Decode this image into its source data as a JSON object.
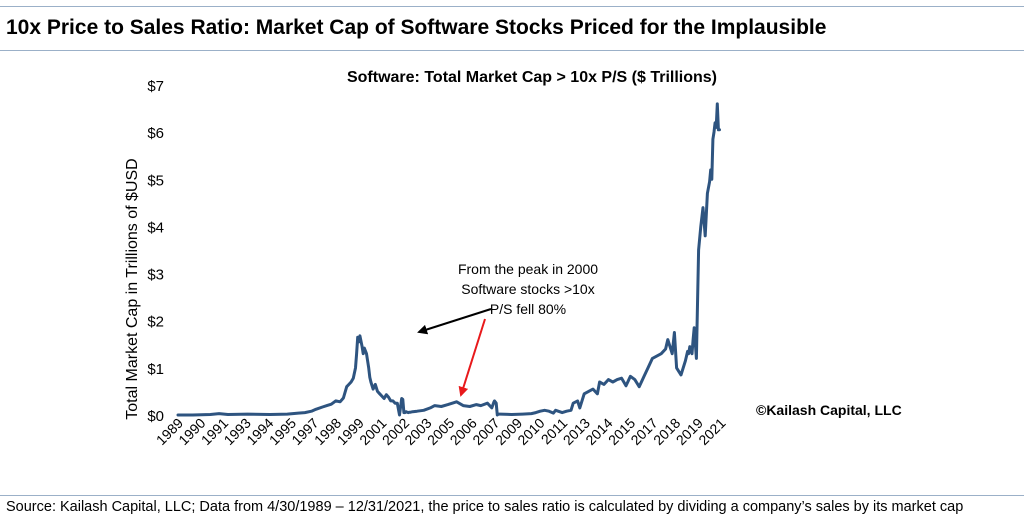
{
  "page": {
    "title": "10x Price to Sales Ratio: Market Cap of Software Stocks Priced for the Implausible",
    "source": "Source: Kailash Capital, LLC; Data from 4/30/1989 – 12/31/2021, the price to sales ratio is calculated by dividing a company’s sales by its market cap"
  },
  "colors": {
    "line": "#2e5480",
    "black_arrow": "#000000",
    "red_arrow": "#e8191b",
    "rule": "#9bb0c8"
  },
  "chart_data": {
    "type": "line",
    "title": "Software: Total Market Cap > 10x P/S ($ Trillions)",
    "ylabel": "Total Market Cap in Trillions of $USD",
    "xlabel": "",
    "ylim": [
      0,
      7
    ],
    "xlim": [
      1989.33,
      2022.25
    ],
    "yticks": [
      0,
      1,
      2,
      3,
      4,
      5,
      6,
      7
    ],
    "ytick_labels": [
      "$0",
      "$1",
      "$2",
      "$3",
      "$4",
      "$5",
      "$6",
      "$7"
    ],
    "xticks": [
      {
        "x": 1989.33,
        "label": "1989"
      },
      {
        "x": 1990.35,
        "label": "1990"
      },
      {
        "x": 1991.38,
        "label": "1991"
      },
      {
        "x": 1992.41,
        "label": "1993"
      },
      {
        "x": 1993.44,
        "label": "1994"
      },
      {
        "x": 1994.47,
        "label": "1995"
      },
      {
        "x": 1995.49,
        "label": "1997"
      },
      {
        "x": 1996.52,
        "label": "1998"
      },
      {
        "x": 1997.55,
        "label": "1999"
      },
      {
        "x": 1998.58,
        "label": "2001"
      },
      {
        "x": 1999.61,
        "label": "2002"
      },
      {
        "x": 2000.63,
        "label": "2003"
      },
      {
        "x": 2001.66,
        "label": "2005"
      },
      {
        "x": 2002.69,
        "label": "2006"
      },
      {
        "x": 2003.72,
        "label": "2007"
      },
      {
        "x": 2004.75,
        "label": "2009"
      },
      {
        "x": 2005.77,
        "label": "2010"
      },
      {
        "x": 2006.8,
        "label": "2011"
      },
      {
        "x": 2007.83,
        "label": "2013"
      },
      {
        "x": 2008.86,
        "label": "2014"
      },
      {
        "x": 2009.89,
        "label": "2015"
      },
      {
        "x": 2010.91,
        "label": "2017"
      },
      {
        "x": 2011.94,
        "label": "2018"
      },
      {
        "x": 2012.97,
        "label": "2019"
      },
      {
        "x": 2014.0,
        "label": "2021"
      }
    ],
    "series": [
      {
        "x": [
          1989.33,
          1990.0,
          1990.8,
          1991.2,
          1991.6,
          1992.5,
          1993.5,
          1994.3,
          1994.8,
          1995.1,
          1995.4,
          1995.6,
          1995.9,
          1996.1,
          1996.3,
          1996.5,
          1996.7,
          1996.85,
          1997.0,
          1997.1,
          1997.2,
          1997.3,
          1997.4,
          1997.45,
          1997.5,
          1997.55,
          1997.6,
          1997.7,
          1997.75,
          1997.8,
          1997.9,
          1998.0,
          1998.05,
          1998.1,
          1998.2,
          1998.3,
          1998.4,
          1998.5,
          1998.6,
          1998.7,
          1998.8,
          1998.9,
          1999.0,
          1999.1,
          1999.2,
          1999.3,
          1999.4,
          1999.5,
          1999.55,
          1999.6,
          1999.65,
          1999.7,
          1999.75,
          1999.8,
          1999.85,
          1999.9,
          2000.0,
          2000.2,
          2000.5,
          2000.8,
          2001.0,
          2001.3,
          2001.6,
          2002.0,
          2002.3,
          2002.6,
          2002.9,
          2003.1,
          2003.4,
          2003.6,
          2003.7,
          2003.72,
          2003.8,
          2003.85,
          2003.9,
          2004.0,
          2004.5,
          2005.0,
          2005.4,
          2005.6,
          2005.8,
          2006.0,
          2006.2,
          2006.4,
          2006.5,
          2006.8,
          2007.0,
          2007.2,
          2007.3,
          2007.5,
          2007.6,
          2007.8,
          2008.0,
          2008.2,
          2008.4,
          2008.5,
          2008.7,
          2008.9,
          2009.1,
          2009.3,
          2009.5,
          2009.7,
          2009.9,
          2010.1,
          2010.3,
          2010.5,
          2010.7,
          2010.9,
          2011.1,
          2011.3,
          2011.5,
          2011.6,
          2011.8,
          2011.9,
          2012.0,
          2012.2,
          2012.4,
          2012.5,
          2012.55,
          2012.6,
          2012.7,
          2012.75,
          2012.8,
          2012.9,
          2013.0,
          2013.1,
          2013.2,
          2013.3,
          2013.4,
          2013.5,
          2013.55,
          2013.6,
          2013.65,
          2013.7,
          2013.75,
          2013.8,
          2013.85,
          2013.9,
          2013.95
        ],
        "y": [
          0.0,
          0.0,
          0.01,
          0.03,
          0.01,
          0.02,
          0.01,
          0.02,
          0.04,
          0.05,
          0.08,
          0.12,
          0.17,
          0.2,
          0.23,
          0.3,
          0.28,
          0.36,
          0.6,
          0.65,
          0.7,
          0.78,
          1.0,
          1.3,
          1.65,
          1.55,
          1.68,
          1.45,
          1.3,
          1.42,
          1.3,
          1.0,
          0.8,
          0.7,
          0.55,
          0.65,
          0.5,
          0.45,
          0.4,
          0.35,
          0.43,
          0.38,
          0.3,
          0.3,
          0.25,
          0.25,
          0.0,
          0.35,
          0.33,
          0.05,
          0.05,
          0.07,
          0.06,
          0.05,
          0.06,
          0.06,
          0.07,
          0.08,
          0.1,
          0.15,
          0.2,
          0.18,
          0.22,
          0.28,
          0.2,
          0.18,
          0.22,
          0.2,
          0.25,
          0.15,
          0.28,
          0.3,
          0.25,
          0.0,
          0.02,
          0.02,
          0.01,
          0.02,
          0.03,
          0.05,
          0.08,
          0.1,
          0.08,
          0.04,
          0.1,
          0.05,
          0.08,
          0.1,
          0.25,
          0.3,
          0.15,
          0.45,
          0.5,
          0.55,
          0.45,
          0.7,
          0.65,
          0.75,
          0.7,
          0.75,
          0.78,
          0.62,
          0.82,
          0.75,
          0.6,
          0.8,
          1.0,
          1.2,
          1.25,
          1.3,
          1.4,
          1.6,
          1.3,
          1.75,
          1.0,
          0.85,
          1.15,
          1.35,
          1.3,
          1.45,
          1.3,
          1.6,
          1.85,
          1.2,
          3.5,
          4.0,
          4.4,
          3.8,
          4.7,
          4.95,
          5.2,
          5.0,
          5.85,
          6.0,
          6.2,
          6.1,
          6.6,
          6.05,
          6.05
        ]
      }
    ],
    "annotations": [
      {
        "lines": [
          "From the peak in 2000",
          "Software stocks >10x",
          "P/S fell 80%"
        ]
      },
      {
        "text": "©Kailash Capital, LLC"
      }
    ]
  }
}
